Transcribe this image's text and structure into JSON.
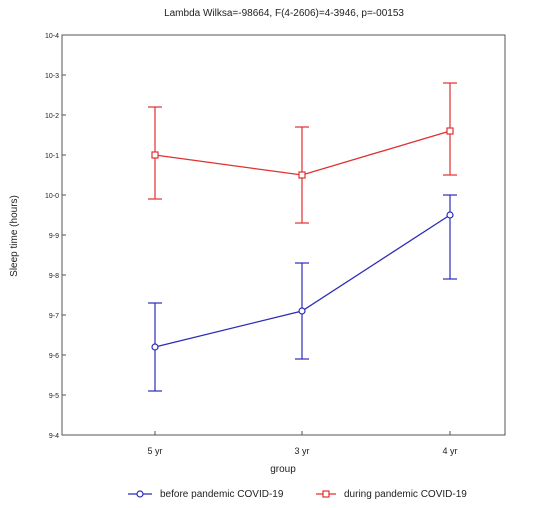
{
  "chart_data": {
    "type": "line",
    "title": "Lambda Wilksa=-98664, F(4-2606)=4-3946, p=-00153",
    "xlabel": "group",
    "ylabel": "Sleep time (hours)",
    "categories": [
      "5 yr",
      "3 yr",
      "4 yr"
    ],
    "ylim": [
      9.4,
      10.4
    ],
    "yticks": [
      9.4,
      9.5,
      9.6,
      9.7,
      9.8,
      9.9,
      10.0,
      10.1,
      10.2,
      10.3,
      10.4
    ],
    "ytick_labels": [
      "9-4",
      "9-5",
      "9-6",
      "9-7",
      "9-8",
      "9-9",
      "10-0",
      "10-1",
      "10-2",
      "10-3",
      "10-4"
    ],
    "grid": false,
    "legend": "bottom",
    "series": [
      {
        "name": "before pandemic COVID-19",
        "color": "#2b2bb8",
        "marker": "circle",
        "values": [
          9.62,
          9.71,
          9.95
        ],
        "lower": [
          9.51,
          9.59,
          9.79
        ],
        "upper": [
          9.73,
          9.83,
          10.0
        ]
      },
      {
        "name": "during pandemic COVID-19",
        "color": "#e03030",
        "marker": "square",
        "values": [
          10.1,
          10.05,
          10.16
        ],
        "lower": [
          9.99,
          9.93,
          10.05
        ],
        "upper": [
          10.22,
          10.17,
          10.28
        ]
      }
    ]
  }
}
